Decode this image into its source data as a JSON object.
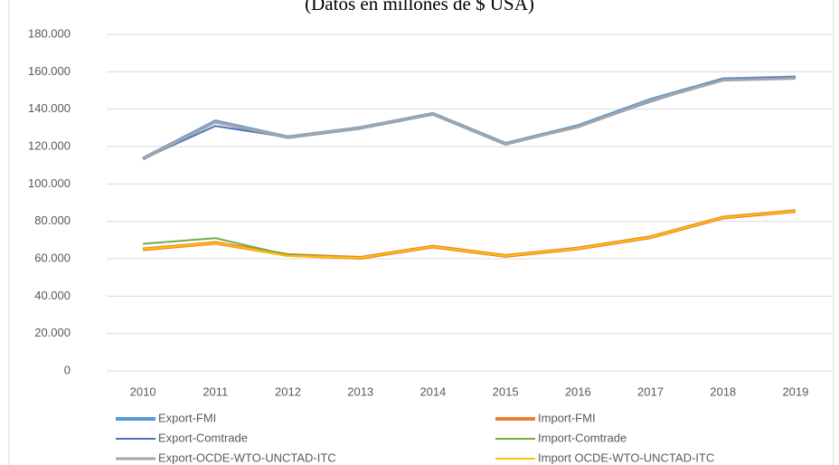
{
  "chart_data": {
    "type": "line",
    "title": "(Datos en millones de $ USA)",
    "categories": [
      "2010",
      "2011",
      "2012",
      "2013",
      "2014",
      "2015",
      "2016",
      "2017",
      "2018",
      "2019"
    ],
    "ylim": [
      0,
      180000
    ],
    "yticks": [
      0,
      {
        "value": 20000,
        "label": "20.000"
      },
      {
        "value": 40000,
        "label": "40.000"
      },
      {
        "value": 60000,
        "label": "60.000"
      },
      {
        "value": 80000,
        "label": "80.000"
      },
      {
        "value": 100000,
        "label": "100.000"
      },
      {
        "value": 120000,
        "label": "120.000"
      },
      {
        "value": 140000,
        "label": "140.000"
      },
      {
        "value": 160000,
        "label": "160.000"
      },
      {
        "value": 180000,
        "label": "180.000"
      }
    ],
    "grid": true,
    "series": [
      {
        "name": "Export-FMI",
        "color": "#5b9bd5",
        "values": [
          113500,
          133500,
          125000,
          130000,
          137500,
          121500,
          131000,
          145000,
          156000,
          157000
        ]
      },
      {
        "name": "Import-FMI",
        "color": "#ed7d31",
        "values": [
          65000,
          68500,
          62000,
          60500,
          66500,
          61500,
          65500,
          71500,
          82000,
          85500
        ]
      },
      {
        "name": "Export-Comtrade",
        "color": "#4472c4",
        "values": [
          113500,
          131000,
          125000,
          130000,
          137500,
          121500,
          130500,
          144000,
          156000,
          157000
        ]
      },
      {
        "name": "Import-Comtrade",
        "color": "#70ad47",
        "values": [
          68000,
          71000,
          62000,
          60500,
          66500,
          61500,
          65500,
          71500,
          82000,
          85500
        ]
      },
      {
        "name": "Export-OCDE-WTO-UNCTAD-ITC",
        "color": "#a5a5a5",
        "values": [
          113500,
          133000,
          125000,
          130000,
          137500,
          121500,
          130500,
          144500,
          155500,
          156500
        ]
      },
      {
        "name": "Import OCDE-WTO-UNCTAD-ITC",
        "color": "#ffc000",
        "values": [
          65000,
          68500,
          61500,
          60500,
          66500,
          61500,
          65500,
          71500,
          82000,
          85500
        ]
      }
    ]
  }
}
